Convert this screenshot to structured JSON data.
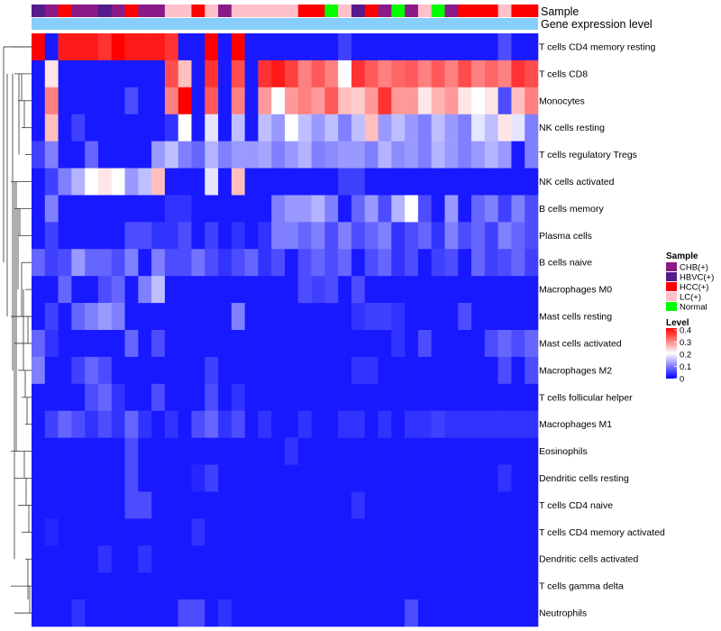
{
  "chart_data": {
    "type": "heatmap",
    "title": "",
    "rows": [
      "T cells CD4 memory resting",
      "T cells CD8",
      "Monocytes",
      "NK cells resting",
      "T cells regulatory  Tregs",
      "NK cells activated",
      "B cells memory",
      "Plasma cells",
      "B cells naive",
      "Macrophages M0",
      "Mast cells resting",
      "Mast cells activated",
      "Macrophages M2",
      "T cells follicular helper",
      "Macrophages M1",
      "Eosinophils",
      "Dendritic cells resting",
      "T cells CD4 naive",
      "T cells CD4 memory activated",
      "Dendritic cells activated",
      "T cells gamma delta",
      "Neutrophils"
    ],
    "annotation_labels": [
      "Sample",
      "Gene expression level"
    ],
    "sample_groups": [
      "HBVC(+)",
      "CHB(+)",
      "HCC(+)",
      "CHB(+)",
      "CHB(+)",
      "HBVC(+)",
      "CHB(+)",
      "HCC(+)",
      "CHB(+)",
      "CHB(+)",
      "LC(+)",
      "LC(+)",
      "HCC(+)",
      "LC(+)",
      "CHB(+)",
      "LC(+)",
      "LC(+)",
      "LC(+)",
      "LC(+)",
      "LC(+)",
      "HCC(+)",
      "HCC(+)",
      "Normal",
      "LC(+)",
      "HBVC(+)",
      "HCC(+)",
      "CHB(+)",
      "Normal",
      "CHB(+)",
      "LC(+)",
      "Normal",
      "CHB(+)",
      "HCC(+)",
      "HCC(+)",
      "HCC(+)",
      "LC(+)",
      "HCC(+)",
      "HCC(+)"
    ],
    "values": [
      [
        0.4,
        0.02,
        0.38,
        0.38,
        0.38,
        0.36,
        0.4,
        0.38,
        0.38,
        0.38,
        0.36,
        0.02,
        0.02,
        0.4,
        0.02,
        0.4,
        0.02,
        0.02,
        0.02,
        0.02,
        0.02,
        0.02,
        0.02,
        0.05,
        0.02,
        0.02,
        0.02,
        0.02,
        0.02,
        0.02,
        0.02,
        0.02,
        0.02,
        0.02,
        0.02,
        0.06,
        0.02,
        0.02
      ],
      [
        0.02,
        0.22,
        0.02,
        0.02,
        0.02,
        0.02,
        0.02,
        0.02,
        0.02,
        0.02,
        0.34,
        0.25,
        0.02,
        0.36,
        0.02,
        0.34,
        0.02,
        0.36,
        0.38,
        0.35,
        0.3,
        0.33,
        0.3,
        0.2,
        0.36,
        0.33,
        0.3,
        0.32,
        0.33,
        0.3,
        0.33,
        0.3,
        0.34,
        0.3,
        0.32,
        0.3,
        0.36,
        0.34
      ],
      [
        0.02,
        0.3,
        0.02,
        0.02,
        0.02,
        0.02,
        0.02,
        0.06,
        0.02,
        0.02,
        0.3,
        0.4,
        0.02,
        0.33,
        0.02,
        0.3,
        0.02,
        0.28,
        0.2,
        0.28,
        0.3,
        0.28,
        0.33,
        0.25,
        0.24,
        0.28,
        0.36,
        0.28,
        0.28,
        0.22,
        0.26,
        0.28,
        0.22,
        0.2,
        0.22,
        0.06,
        0.25,
        0.3
      ],
      [
        0.02,
        0.25,
        0.02,
        0.05,
        0.02,
        0.02,
        0.02,
        0.02,
        0.02,
        0.02,
        0.04,
        0.2,
        0.02,
        0.18,
        0.02,
        0.15,
        0.02,
        0.15,
        0.12,
        0.2,
        0.15,
        0.12,
        0.15,
        0.1,
        0.15,
        0.25,
        0.12,
        0.15,
        0.12,
        0.1,
        0.15,
        0.12,
        0.1,
        0.18,
        0.15,
        0.22,
        0.18,
        0.1
      ],
      [
        0.05,
        0.1,
        0.02,
        0.02,
        0.08,
        0.02,
        0.02,
        0.02,
        0.02,
        0.12,
        0.15,
        0.1,
        0.08,
        0.14,
        0.1,
        0.12,
        0.12,
        0.13,
        0.1,
        0.12,
        0.14,
        0.1,
        0.11,
        0.12,
        0.12,
        0.1,
        0.14,
        0.11,
        0.12,
        0.1,
        0.14,
        0.12,
        0.1,
        0.12,
        0.14,
        0.12,
        0.02,
        0.1
      ],
      [
        0.02,
        0.05,
        0.1,
        0.14,
        0.2,
        0.22,
        0.2,
        0.12,
        0.15,
        0.25,
        0.02,
        0.02,
        0.02,
        0.18,
        0.02,
        0.25,
        0.02,
        0.02,
        0.02,
        0.02,
        0.02,
        0.02,
        0.02,
        0.05,
        0.05,
        0.02,
        0.02,
        0.02,
        0.02,
        0.02,
        0.02,
        0.02,
        0.02,
        0.02,
        0.02,
        0.02,
        0.02,
        0.02
      ],
      [
        0.02,
        0.1,
        0.02,
        0.02,
        0.02,
        0.02,
        0.02,
        0.02,
        0.02,
        0.02,
        0.04,
        0.04,
        0.02,
        0.02,
        0.02,
        0.02,
        0.02,
        0.02,
        0.1,
        0.12,
        0.12,
        0.14,
        0.1,
        0.02,
        0.08,
        0.12,
        0.06,
        0.14,
        0.2,
        0.06,
        0.02,
        0.12,
        0.02,
        0.08,
        0.1,
        0.05,
        0.1,
        0.06
      ],
      [
        0.02,
        0.05,
        0.02,
        0.02,
        0.02,
        0.02,
        0.02,
        0.06,
        0.06,
        0.04,
        0.04,
        0.06,
        0.02,
        0.05,
        0.02,
        0.04,
        0.02,
        0.04,
        0.1,
        0.1,
        0.08,
        0.1,
        0.06,
        0.1,
        0.06,
        0.08,
        0.1,
        0.04,
        0.06,
        0.08,
        0.04,
        0.1,
        0.06,
        0.08,
        0.05,
        0.1,
        0.08,
        0.06
      ],
      [
        0.08,
        0.05,
        0.06,
        0.12,
        0.08,
        0.08,
        0.06,
        0.1,
        0.02,
        0.1,
        0.06,
        0.06,
        0.09,
        0.06,
        0.04,
        0.06,
        0.08,
        0.04,
        0.06,
        0.02,
        0.06,
        0.08,
        0.06,
        0.08,
        0.02,
        0.06,
        0.08,
        0.04,
        0.06,
        0.02,
        0.05,
        0.06,
        0.02,
        0.08,
        0.05,
        0.06,
        0.08,
        0.05
      ],
      [
        0.02,
        0.02,
        0.08,
        0.02,
        0.02,
        0.06,
        0.08,
        0.02,
        0.1,
        0.15,
        0.02,
        0.02,
        0.02,
        0.02,
        0.02,
        0.02,
        0.02,
        0.02,
        0.02,
        0.02,
        0.06,
        0.05,
        0.06,
        0.02,
        0.06,
        0.02,
        0.02,
        0.02,
        0.02,
        0.02,
        0.02,
        0.02,
        0.02,
        0.02,
        0.02,
        0.02,
        0.02,
        0.02
      ],
      [
        0.02,
        0.05,
        0.02,
        0.08,
        0.1,
        0.12,
        0.1,
        0.02,
        0.02,
        0.02,
        0.02,
        0.02,
        0.02,
        0.02,
        0.02,
        0.1,
        0.02,
        0.02,
        0.02,
        0.02,
        0.02,
        0.02,
        0.02,
        0.02,
        0.04,
        0.05,
        0.05,
        0.04,
        0.02,
        0.02,
        0.02,
        0.02,
        0.06,
        0.02,
        0.02,
        0.02,
        0.02,
        0.02
      ],
      [
        0.08,
        0.04,
        0.02,
        0.02,
        0.02,
        0.02,
        0.02,
        0.08,
        0.02,
        0.06,
        0.02,
        0.02,
        0.02,
        0.02,
        0.02,
        0.02,
        0.02,
        0.02,
        0.02,
        0.02,
        0.02,
        0.02,
        0.02,
        0.02,
        0.02,
        0.02,
        0.02,
        0.04,
        0.02,
        0.06,
        0.02,
        0.02,
        0.02,
        0.02,
        0.06,
        0.08,
        0.06,
        0.08
      ],
      [
        0.1,
        0.02,
        0.02,
        0.05,
        0.08,
        0.06,
        0.02,
        0.02,
        0.02,
        0.02,
        0.02,
        0.02,
        0.02,
        0.05,
        0.02,
        0.02,
        0.02,
        0.02,
        0.02,
        0.02,
        0.02,
        0.02,
        0.02,
        0.02,
        0.04,
        0.04,
        0.02,
        0.02,
        0.02,
        0.02,
        0.02,
        0.02,
        0.02,
        0.02,
        0.02,
        0.06,
        0.02,
        0.06
      ],
      [
        0.02,
        0.02,
        0.02,
        0.02,
        0.06,
        0.08,
        0.04,
        0.02,
        0.02,
        0.06,
        0.02,
        0.02,
        0.02,
        0.06,
        0.02,
        0.04,
        0.02,
        0.02,
        0.02,
        0.02,
        0.02,
        0.02,
        0.02,
        0.02,
        0.02,
        0.02,
        0.02,
        0.02,
        0.02,
        0.02,
        0.02,
        0.02,
        0.02,
        0.02,
        0.02,
        0.02,
        0.02,
        0.02
      ],
      [
        0.02,
        0.05,
        0.08,
        0.06,
        0.04,
        0.06,
        0.04,
        0.08,
        0.04,
        0.02,
        0.04,
        0.02,
        0.06,
        0.08,
        0.04,
        0.06,
        0.02,
        0.04,
        0.02,
        0.02,
        0.04,
        0.02,
        0.02,
        0.04,
        0.04,
        0.02,
        0.04,
        0.02,
        0.04,
        0.04,
        0.05,
        0.04,
        0.04,
        0.04,
        0.04,
        0.04,
        0.04,
        0.04
      ],
      [
        0.02,
        0.02,
        0.02,
        0.02,
        0.02,
        0.02,
        0.02,
        0.06,
        0.02,
        0.02,
        0.02,
        0.02,
        0.02,
        0.02,
        0.02,
        0.02,
        0.02,
        0.02,
        0.02,
        0.04,
        0.02,
        0.02,
        0.02,
        0.02,
        0.02,
        0.02,
        0.02,
        0.02,
        0.02,
        0.02,
        0.02,
        0.02,
        0.02,
        0.02,
        0.02,
        0.02,
        0.02,
        0.02
      ],
      [
        0.02,
        0.02,
        0.02,
        0.02,
        0.02,
        0.02,
        0.02,
        0.06,
        0.02,
        0.02,
        0.02,
        0.02,
        0.03,
        0.05,
        0.02,
        0.02,
        0.02,
        0.02,
        0.02,
        0.02,
        0.02,
        0.02,
        0.02,
        0.02,
        0.02,
        0.02,
        0.02,
        0.02,
        0.02,
        0.02,
        0.02,
        0.02,
        0.02,
        0.02,
        0.02,
        0.04,
        0.02,
        0.02
      ],
      [
        0.02,
        0.02,
        0.02,
        0.02,
        0.02,
        0.02,
        0.02,
        0.06,
        0.06,
        0.02,
        0.02,
        0.02,
        0.02,
        0.02,
        0.02,
        0.02,
        0.02,
        0.02,
        0.02,
        0.02,
        0.02,
        0.02,
        0.02,
        0.02,
        0.04,
        0.02,
        0.02,
        0.02,
        0.02,
        0.02,
        0.02,
        0.02,
        0.02,
        0.02,
        0.02,
        0.02,
        0.02,
        0.02
      ],
      [
        0.02,
        0.03,
        0.02,
        0.02,
        0.02,
        0.02,
        0.02,
        0.02,
        0.02,
        0.02,
        0.02,
        0.02,
        0.04,
        0.02,
        0.02,
        0.02,
        0.02,
        0.02,
        0.02,
        0.02,
        0.02,
        0.02,
        0.02,
        0.02,
        0.02,
        0.02,
        0.02,
        0.02,
        0.02,
        0.02,
        0.02,
        0.02,
        0.02,
        0.02,
        0.02,
        0.02,
        0.02,
        0.02
      ],
      [
        0.02,
        0.02,
        0.02,
        0.02,
        0.02,
        0.04,
        0.02,
        0.02,
        0.04,
        0.02,
        0.02,
        0.02,
        0.02,
        0.02,
        0.02,
        0.02,
        0.02,
        0.02,
        0.02,
        0.02,
        0.02,
        0.02,
        0.02,
        0.02,
        0.02,
        0.02,
        0.02,
        0.02,
        0.02,
        0.02,
        0.02,
        0.02,
        0.02,
        0.02,
        0.02,
        0.02,
        0.02,
        0.02
      ],
      [
        0.02,
        0.02,
        0.02,
        0.02,
        0.02,
        0.02,
        0.02,
        0.02,
        0.02,
        0.02,
        0.02,
        0.02,
        0.02,
        0.02,
        0.02,
        0.02,
        0.02,
        0.02,
        0.02,
        0.02,
        0.02,
        0.02,
        0.02,
        0.02,
        0.02,
        0.02,
        0.02,
        0.02,
        0.02,
        0.02,
        0.02,
        0.02,
        0.02,
        0.02,
        0.02,
        0.02,
        0.02,
        0.02
      ],
      [
        0.02,
        0.02,
        0.02,
        0.04,
        0.02,
        0.02,
        0.02,
        0.02,
        0.02,
        0.02,
        0.02,
        0.06,
        0.06,
        0.02,
        0.04,
        0.02,
        0.02,
        0.02,
        0.02,
        0.02,
        0.02,
        0.02,
        0.02,
        0.02,
        0.02,
        0.02,
        0.02,
        0.02,
        0.06,
        0.02,
        0.02,
        0.02,
        0.02,
        0.02,
        0.02,
        0.02,
        0.02,
        0.02
      ]
    ],
    "legend_sample": {
      "title": "Sample",
      "entries": [
        {
          "label": "CHB(+)",
          "color": "#8B1A89"
        },
        {
          "label": "HBVC(+)",
          "color": "#551A8B"
        },
        {
          "label": "HCC(+)",
          "color": "#FF0000"
        },
        {
          "label": "LC(+)",
          "color": "#FFC0CB"
        },
        {
          "label": "Normal",
          "color": "#00FF00"
        }
      ]
    },
    "legend_level": {
      "title": "Level",
      "ticks": [
        "0.4",
        "0.3",
        "0.2",
        "0.1",
        "0"
      ],
      "range": [
        0,
        0.4
      ],
      "colors": {
        "low": "#0000FF",
        "mid": "#FFFFFF",
        "high": "#FF0000"
      }
    },
    "expression_bar_color": "#87CEFA",
    "ylim": [
      0,
      0.4
    ]
  }
}
